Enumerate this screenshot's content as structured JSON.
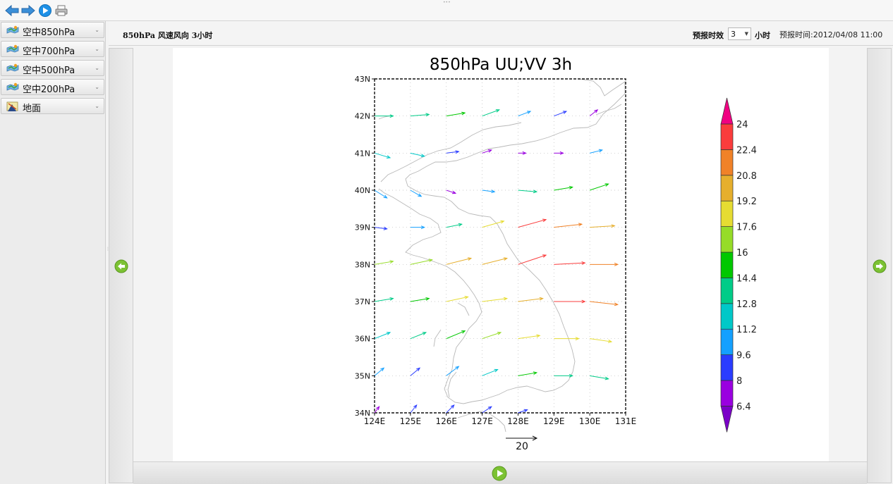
{
  "toolbar": {
    "buttons": [
      {
        "name": "back-icon"
      },
      {
        "name": "forward-icon"
      },
      {
        "name": "play-icon"
      },
      {
        "name": "print-icon"
      }
    ]
  },
  "sidebar": {
    "items": [
      {
        "label": "空中850hPa",
        "icon": "map-layers-icon"
      },
      {
        "label": "空中700hPa",
        "icon": "map-layers-icon"
      },
      {
        "label": "空中500hPa",
        "icon": "map-layers-icon"
      },
      {
        "label": "空中200hPa",
        "icon": "map-layers-icon"
      },
      {
        "label": "地面",
        "icon": "surface-map-icon"
      }
    ]
  },
  "header": {
    "product_title": "850hPa 风速风向 3小时",
    "lead_label": "预报时效",
    "lead_value": "3",
    "lead_unit": "小时",
    "forecast_time": "预报时间:2012/04/08 11:00"
  },
  "chart_data": {
    "type": "vector-map",
    "title": "850hPa UU;VV 3h",
    "lon_ticks": [
      "124E",
      "125E",
      "126E",
      "127E",
      "128E",
      "129E",
      "130E",
      "131E"
    ],
    "lat_ticks": [
      "34N",
      "35N",
      "36N",
      "37N",
      "38N",
      "39N",
      "40N",
      "41N",
      "42N",
      "43N"
    ],
    "xlim": [
      124,
      131
    ],
    "ylim": [
      34,
      43
    ],
    "grid": true,
    "reference_vector": "20",
    "colorbar": {
      "levels": [
        "6.4",
        "8",
        "9.6",
        "11.2",
        "12.8",
        "14.4",
        "16",
        "17.6",
        "19.2",
        "20.8",
        "22.4",
        "24"
      ],
      "colors": [
        "#7b00c8",
        "#9a00e0",
        "#2a3cff",
        "#14a0ff",
        "#00c8c8",
        "#00cc88",
        "#00c800",
        "#96dc28",
        "#e6dc32",
        "#e6af2d",
        "#f08228",
        "#fa3c3c",
        "#f00082"
      ]
    },
    "vectors": [
      {
        "lon": 124,
        "lat": 42,
        "u": 12,
        "v": 0,
        "c": 5
      },
      {
        "lon": 125,
        "lat": 42,
        "u": 12,
        "v": 1,
        "c": 5
      },
      {
        "lon": 126,
        "lat": 42,
        "u": 12,
        "v": 2,
        "c": 6
      },
      {
        "lon": 127,
        "lat": 42,
        "u": 11,
        "v": 4,
        "c": 5
      },
      {
        "lon": 128,
        "lat": 42,
        "u": 8,
        "v": 3,
        "c": 3
      },
      {
        "lon": 129,
        "lat": 42,
        "u": 8,
        "v": 3,
        "c": 2
      },
      {
        "lon": 130,
        "lat": 42,
        "u": 5,
        "v": 4,
        "c": 1
      },
      {
        "lon": 124,
        "lat": 41,
        "u": 10,
        "v": -3,
        "c": 4
      },
      {
        "lon": 125,
        "lat": 41,
        "u": 9,
        "v": -2,
        "c": 4
      },
      {
        "lon": 126,
        "lat": 41,
        "u": 8,
        "v": 1,
        "c": 2
      },
      {
        "lon": 127,
        "lat": 41,
        "u": 6,
        "v": 2,
        "c": 1
      },
      {
        "lon": 128,
        "lat": 41,
        "u": 5,
        "v": 0,
        "c": 1
      },
      {
        "lon": 129,
        "lat": 41,
        "u": 6,
        "v": 0,
        "c": 1
      },
      {
        "lon": 130,
        "lat": 41,
        "u": 8,
        "v": 2,
        "c": 3
      },
      {
        "lon": 124,
        "lat": 40,
        "u": 8,
        "v": -5,
        "c": 3
      },
      {
        "lon": 125,
        "lat": 40,
        "u": 7,
        "v": -4,
        "c": 3
      },
      {
        "lon": 126,
        "lat": 40,
        "u": 6,
        "v": -2,
        "c": 1
      },
      {
        "lon": 127,
        "lat": 40,
        "u": 8,
        "v": -1,
        "c": 3
      },
      {
        "lon": 128,
        "lat": 40,
        "u": 12,
        "v": -1,
        "c": 5
      },
      {
        "lon": 129,
        "lat": 40,
        "u": 12,
        "v": 2,
        "c": 6
      },
      {
        "lon": 130,
        "lat": 40,
        "u": 12,
        "v": 4,
        "c": 6
      },
      {
        "lon": 124,
        "lat": 39,
        "u": 8,
        "v": -1,
        "c": 2
      },
      {
        "lon": 125,
        "lat": 39,
        "u": 9,
        "v": 0,
        "c": 3
      },
      {
        "lon": 126,
        "lat": 39,
        "u": 10,
        "v": 2,
        "c": 5
      },
      {
        "lon": 127,
        "lat": 39,
        "u": 14,
        "v": 4,
        "c": 8
      },
      {
        "lon": 128,
        "lat": 39,
        "u": 18,
        "v": 5,
        "c": 11
      },
      {
        "lon": 129,
        "lat": 39,
        "u": 18,
        "v": 2,
        "c": 10
      },
      {
        "lon": 130,
        "lat": 39,
        "u": 16,
        "v": 1,
        "c": 9
      },
      {
        "lon": 124,
        "lat": 38,
        "u": 12,
        "v": 2,
        "c": 7
      },
      {
        "lon": 125,
        "lat": 38,
        "u": 14,
        "v": 3,
        "c": 7
      },
      {
        "lon": 126,
        "lat": 38,
        "u": 16,
        "v": 4,
        "c": 9
      },
      {
        "lon": 127,
        "lat": 38,
        "u": 16,
        "v": 4,
        "c": 9
      },
      {
        "lon": 128,
        "lat": 38,
        "u": 18,
        "v": 6,
        "c": 11
      },
      {
        "lon": 129,
        "lat": 38,
        "u": 20,
        "v": 1,
        "c": 11
      },
      {
        "lon": 130,
        "lat": 38,
        "u": 18,
        "v": 0,
        "c": 10
      },
      {
        "lon": 124,
        "lat": 37,
        "u": 12,
        "v": 2,
        "c": 5
      },
      {
        "lon": 125,
        "lat": 37,
        "u": 12,
        "v": 2,
        "c": 6
      },
      {
        "lon": 126,
        "lat": 37,
        "u": 14,
        "v": 3,
        "c": 8
      },
      {
        "lon": 127,
        "lat": 37,
        "u": 16,
        "v": 2,
        "c": 8
      },
      {
        "lon": 128,
        "lat": 37,
        "u": 16,
        "v": 2,
        "c": 9
      },
      {
        "lon": 129,
        "lat": 37,
        "u": 20,
        "v": 0,
        "c": 11
      },
      {
        "lon": 130,
        "lat": 37,
        "u": 18,
        "v": -2,
        "c": 10
      },
      {
        "lon": 124,
        "lat": 36,
        "u": 10,
        "v": 4,
        "c": 4
      },
      {
        "lon": 125,
        "lat": 36,
        "u": 10,
        "v": 4,
        "c": 5
      },
      {
        "lon": 126,
        "lat": 36,
        "u": 12,
        "v": 5,
        "c": 6
      },
      {
        "lon": 127,
        "lat": 36,
        "u": 12,
        "v": 4,
        "c": 7
      },
      {
        "lon": 128,
        "lat": 36,
        "u": 14,
        "v": 2,
        "c": 8
      },
      {
        "lon": 129,
        "lat": 36,
        "u": 16,
        "v": 0,
        "c": 8
      },
      {
        "lon": 130,
        "lat": 36,
        "u": 14,
        "v": -2,
        "c": 8
      },
      {
        "lon": 124,
        "lat": 35,
        "u": 6,
        "v": 5,
        "c": 3
      },
      {
        "lon": 125,
        "lat": 35,
        "u": 6,
        "v": 5,
        "c": 2
      },
      {
        "lon": 126,
        "lat": 35,
        "u": 8,
        "v": 6,
        "c": 3
      },
      {
        "lon": 127,
        "lat": 35,
        "u": 10,
        "v": 4,
        "c": 4
      },
      {
        "lon": 128,
        "lat": 35,
        "u": 12,
        "v": 2,
        "c": 6
      },
      {
        "lon": 129,
        "lat": 35,
        "u": 12,
        "v": 0,
        "c": 5
      },
      {
        "lon": 130,
        "lat": 35,
        "u": 12,
        "v": -2,
        "c": 5
      },
      {
        "lon": 124,
        "lat": 34,
        "u": 3,
        "v": 4,
        "c": 1
      },
      {
        "lon": 125,
        "lat": 34,
        "u": 4,
        "v": 5,
        "c": 2
      },
      {
        "lon": 126,
        "lat": 34,
        "u": 5,
        "v": 5,
        "c": 2
      },
      {
        "lon": 127,
        "lat": 34,
        "u": 6,
        "v": 4,
        "c": 2
      },
      {
        "lon": 128,
        "lat": 34,
        "u": 6,
        "v": 2,
        "c": 2
      }
    ]
  }
}
